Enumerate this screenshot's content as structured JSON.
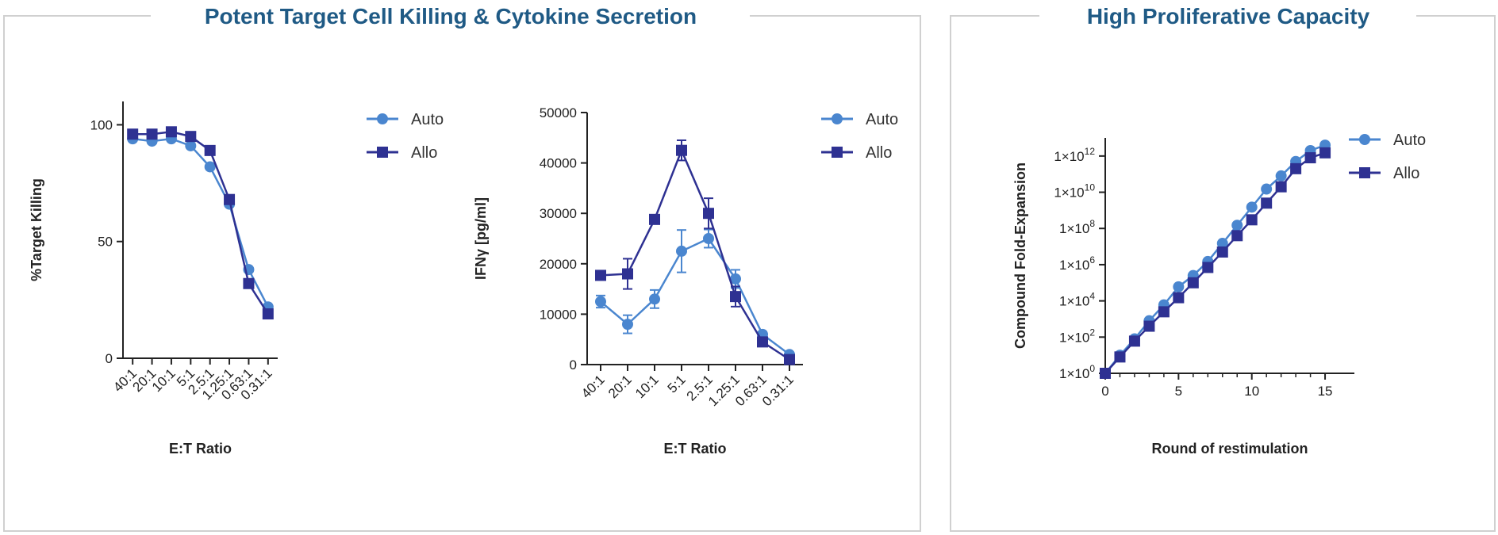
{
  "panels": [
    {
      "title": "Potent Target Cell Killing & Cytokine Secretion"
    },
    {
      "title": "High Proliferative Capacity"
    }
  ],
  "colors": {
    "auto": "#4a86cf",
    "allo": "#2e3192",
    "frame": "#d0d0d0",
    "title": "#1f5a85"
  },
  "chart_data": [
    {
      "type": "line",
      "xlabel": "E:T Ratio",
      "ylabel": "%Target Killing",
      "categories": [
        "40:1",
        "20:1",
        "10:1",
        "5:1",
        "2.5:1",
        "1.25:1",
        "0.63:1",
        "0.31:1"
      ],
      "ylim": [
        0,
        110
      ],
      "yticks": [
        0,
        50,
        100
      ],
      "legend": "top-right",
      "series": [
        {
          "name": "Auto",
          "marker": "circle",
          "values": [
            94,
            93,
            94,
            91,
            82,
            66,
            38,
            22
          ],
          "errors": [
            0,
            0,
            0,
            0,
            0,
            0,
            0,
            0
          ]
        },
        {
          "name": "Allo",
          "marker": "square",
          "values": [
            96,
            96,
            97,
            95,
            89,
            68,
            32,
            19
          ],
          "errors": [
            0,
            0,
            0,
            0,
            0,
            0,
            0,
            0
          ]
        }
      ]
    },
    {
      "type": "line",
      "xlabel": "E:T Ratio",
      "ylabel": "IFNγ [pg/ml]",
      "categories": [
        "40:1",
        "20:1",
        "10:1",
        "5:1",
        "2.5:1",
        "1.25:1",
        "0.63:1",
        "0.31:1"
      ],
      "ylim": [
        0,
        50000
      ],
      "yticks": [
        0,
        10000,
        20000,
        30000,
        40000,
        50000
      ],
      "legend": "top-right",
      "series": [
        {
          "name": "Auto",
          "marker": "circle",
          "values": [
            12500,
            8000,
            13000,
            22500,
            25000,
            17000,
            6000,
            2000
          ],
          "errors": [
            1200,
            1800,
            1800,
            4200,
            1800,
            1800,
            500,
            300
          ]
        },
        {
          "name": "Allo",
          "marker": "square",
          "values": [
            17700,
            18000,
            28800,
            42500,
            30000,
            13500,
            4500,
            1000
          ],
          "errors": [
            0,
            3000,
            0,
            2000,
            3000,
            2000,
            500,
            200
          ]
        }
      ]
    },
    {
      "type": "line",
      "xlabel": "Round of restimulation",
      "ylabel": "Compound Fold-Expansion",
      "yscale": "log",
      "xlim": [
        0,
        17
      ],
      "xticks": [
        0,
        5,
        10,
        15
      ],
      "ylim": [
        1,
        10000000000000.0
      ],
      "ytick_exponents": [
        0,
        2,
        4,
        6,
        8,
        10,
        12
      ],
      "ytick_base": "1×10",
      "legend": "top-right",
      "series": [
        {
          "name": "Auto",
          "marker": "circle",
          "x": [
            0,
            1,
            2,
            3,
            4,
            5,
            6,
            7,
            8,
            9,
            10,
            11,
            12,
            13,
            14,
            15
          ],
          "values": [
            1,
            10,
            80,
            800,
            6000,
            60000,
            250000,
            1500000,
            15000000,
            150000000,
            1500000000,
            15000000000,
            80000000000,
            500000000000,
            2000000000000,
            4000000000000
          ]
        },
        {
          "name": "Allo",
          "marker": "square",
          "x": [
            0,
            1,
            2,
            3,
            4,
            5,
            6,
            7,
            8,
            9,
            10,
            11,
            12,
            13,
            14,
            15
          ],
          "values": [
            1,
            8,
            60,
            400,
            2500,
            15000,
            100000,
            700000,
            5000000,
            40000000,
            300000000,
            2500000000,
            20000000000,
            200000000000,
            800000000000,
            1500000000000
          ]
        }
      ]
    }
  ]
}
